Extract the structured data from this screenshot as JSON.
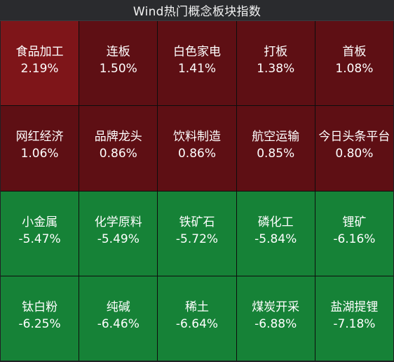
{
  "header": {
    "title": "Wind热门概念板块指数"
  },
  "colors": {
    "up_strong": "#7e1519",
    "up": "#5e0f14",
    "down": "#168237",
    "title_bar": "#2a2b2e",
    "text": "#ffffff"
  },
  "tiles": [
    {
      "name": "食品加工",
      "change": "2.19%",
      "trend": "up-strong"
    },
    {
      "name": "连板",
      "change": "1.50%",
      "trend": "up"
    },
    {
      "name": "白色家电",
      "change": "1.41%",
      "trend": "up"
    },
    {
      "name": "打板",
      "change": "1.38%",
      "trend": "up"
    },
    {
      "name": "首板",
      "change": "1.08%",
      "trend": "up"
    },
    {
      "name": "网红经济",
      "change": "1.06%",
      "trend": "up"
    },
    {
      "name": "品牌龙头",
      "change": "0.86%",
      "trend": "up"
    },
    {
      "name": "饮料制造",
      "change": "0.86%",
      "trend": "up"
    },
    {
      "name": "航空运输",
      "change": "0.85%",
      "trend": "up"
    },
    {
      "name": "今日头条平台",
      "change": "0.80%",
      "trend": "up"
    },
    {
      "name": "小金属",
      "change": "-5.47%",
      "trend": "down"
    },
    {
      "name": "化学原料",
      "change": "-5.49%",
      "trend": "down"
    },
    {
      "name": "铁矿石",
      "change": "-5.72%",
      "trend": "down"
    },
    {
      "name": "磷化工",
      "change": "-5.84%",
      "trend": "down"
    },
    {
      "name": "锂矿",
      "change": "-6.16%",
      "trend": "down"
    },
    {
      "name": "钛白粉",
      "change": "-6.25%",
      "trend": "down"
    },
    {
      "name": "纯碱",
      "change": "-6.46%",
      "trend": "down"
    },
    {
      "name": "稀土",
      "change": "-6.64%",
      "trend": "down"
    },
    {
      "name": "煤炭开采",
      "change": "-6.88%",
      "trend": "down"
    },
    {
      "name": "盐湖提锂",
      "change": "-7.18%",
      "trend": "down"
    }
  ]
}
